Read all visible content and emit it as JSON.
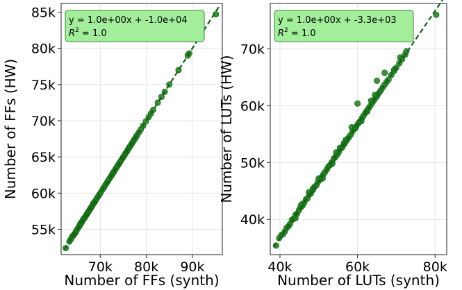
{
  "chart_data": [
    {
      "type": "scatter",
      "xlabel": "Number of FFs (synth)",
      "ylabel": "Number of FFs (HW)",
      "xlim": [
        61500,
        96500
      ],
      "ylim": [
        51500,
        86200
      ],
      "xticks": [
        70000,
        80000,
        90000
      ],
      "xtick_labels": [
        "70k",
        "80k",
        "90k"
      ],
      "yticks": [
        55000,
        60000,
        65000,
        70000,
        75000,
        80000,
        85000
      ],
      "ytick_labels": [
        "55k",
        "60k",
        "65k",
        "70k",
        "75k",
        "80k",
        "85k"
      ],
      "grid": true,
      "annotation": {
        "line1": "y = 1.0e+00x + -1.0e+04",
        "line2_math": "R",
        "line2_sup": "2",
        "line2_rest": " = 1.0",
        "placement": "top-left"
      },
      "fit": {
        "slope": 1.0,
        "intercept": -10000
      },
      "x": [
        62500,
        63300,
        63600,
        63900,
        64100,
        64300,
        64600,
        64800,
        65000,
        65300,
        65500,
        65700,
        65900,
        66100,
        66300,
        66500,
        66700,
        66900,
        67100,
        67300,
        67500,
        67700,
        67900,
        68100,
        68300,
        68500,
        68700,
        68900,
        69200,
        69500,
        69800,
        70100,
        70500,
        70800,
        71100,
        71400,
        71700,
        72000,
        72300,
        72600,
        72800,
        73000,
        73300,
        73500,
        73800,
        74000,
        74300,
        74500,
        74800,
        75000,
        75300,
        75500,
        75800,
        76000,
        76300,
        76500,
        76800,
        77000,
        77300,
        77500,
        77800,
        78000,
        78400,
        78800,
        79300,
        79900,
        80500,
        81000,
        81500,
        82500,
        83300,
        84000,
        85000,
        87000,
        89000,
        89300,
        95100
      ],
      "y": [
        52400,
        53300,
        53600,
        54000,
        54100,
        54300,
        54500,
        54800,
        55000,
        55300,
        55500,
        55800,
        55900,
        56100,
        56400,
        56500,
        56700,
        56900,
        57100,
        57300,
        57500,
        57700,
        57900,
        58100,
        58300,
        58600,
        58700,
        58900,
        59200,
        59500,
        59800,
        60100,
        60500,
        60800,
        61100,
        61400,
        61700,
        62000,
        62300,
        62600,
        62800,
        63000,
        63300,
        63500,
        63800,
        64000,
        64300,
        64500,
        64800,
        65000,
        65300,
        65500,
        65800,
        66000,
        66300,
        66500,
        66800,
        67000,
        67300,
        67500,
        67800,
        68000,
        68400,
        68800,
        69300,
        69900,
        70500,
        71000,
        71500,
        72500,
        73300,
        74000,
        75000,
        77000,
        79000,
        79300,
        84700
      ]
    },
    {
      "type": "scatter",
      "xlabel": "Number of LUTs (synth)",
      "ylabel": "Number of LUTs (HW)",
      "xlim": [
        37500,
        83000
      ],
      "ylim": [
        33800,
        78000
      ],
      "xticks": [
        40000,
        60000,
        80000
      ],
      "xtick_labels": [
        "40k",
        "60k",
        "80k"
      ],
      "yticks": [
        40000,
        50000,
        60000,
        70000
      ],
      "ytick_labels": [
        "40k",
        "50k",
        "60k",
        "70k"
      ],
      "grid": true,
      "annotation": {
        "line1": "y = 1.0e+00x + -3.3e+03",
        "line2_math": "R",
        "line2_sup": "2",
        "line2_rest": " = 1.0",
        "placement": "top-left"
      },
      "fit": {
        "slope": 1.0,
        "intercept": -3300
      },
      "x": [
        39000,
        39800,
        40300,
        40800,
        41300,
        41700,
        42200,
        42600,
        43100,
        43500,
        44000,
        44400,
        44900,
        45300,
        45800,
        46200,
        46700,
        47100,
        47600,
        48000,
        48500,
        48900,
        49400,
        49800,
        50300,
        50700,
        51200,
        51600,
        52100,
        52500,
        53000,
        53400,
        53900,
        54300,
        54800,
        55200,
        55700,
        56100,
        56600,
        57000,
        57500,
        57900,
        58400,
        58800,
        59300,
        59700,
        60200,
        60600,
        61100,
        61500,
        62000,
        62400,
        62900,
        63300,
        63800,
        64200,
        64700,
        65100,
        65600,
        66000,
        66500,
        67000,
        67500,
        68000,
        68700,
        69400,
        70000,
        70800,
        71500,
        72300,
        72600,
        80300,
        44000,
        47500,
        51000,
        54500,
        57000,
        58500,
        60000,
        62500,
        65000,
        67000,
        69500,
        71000,
        50000,
        55500,
        59500,
        63500,
        45500,
        48500,
        53500,
        56500,
        61000,
        64500
      ],
      "y": [
        35400,
        36700,
        37200,
        37400,
        37900,
        38500,
        38800,
        39200,
        39900,
        40100,
        40800,
        41000,
        41600,
        42100,
        42400,
        42900,
        43500,
        43700,
        44400,
        44600,
        45200,
        45700,
        46000,
        46600,
        47000,
        47400,
        47900,
        48300,
        48800,
        49300,
        49600,
        50100,
        50700,
        51000,
        51400,
        51900,
        52500,
        52700,
        53300,
        53700,
        54200,
        54600,
        55000,
        55600,
        56000,
        56400,
        56900,
        57200,
        57800,
        58200,
        58700,
        59100,
        59600,
        60000,
        60500,
        60900,
        61400,
        61800,
        62300,
        62700,
        63200,
        63700,
        64200,
        64600,
        65400,
        66100,
        66700,
        67500,
        68200,
        69000,
        69600,
        76000,
        40200,
        44800,
        47200,
        51800,
        54000,
        56200,
        60400,
        59000,
        64400,
        65800,
        66400,
        68500,
        47200,
        52600,
        56100,
        60900,
        42600,
        45400,
        49800,
        53400,
        57300,
        61900
      ]
    }
  ],
  "colors": {
    "point_fill": "#1a7f1a",
    "point_stroke": "#0b5a0b",
    "fit_line": "#0f5f0f",
    "annotation_fill": "#a3ee9b",
    "annotation_stroke": "#3a8a3a",
    "grid": "#e5e5e5",
    "axis": "#222222"
  }
}
